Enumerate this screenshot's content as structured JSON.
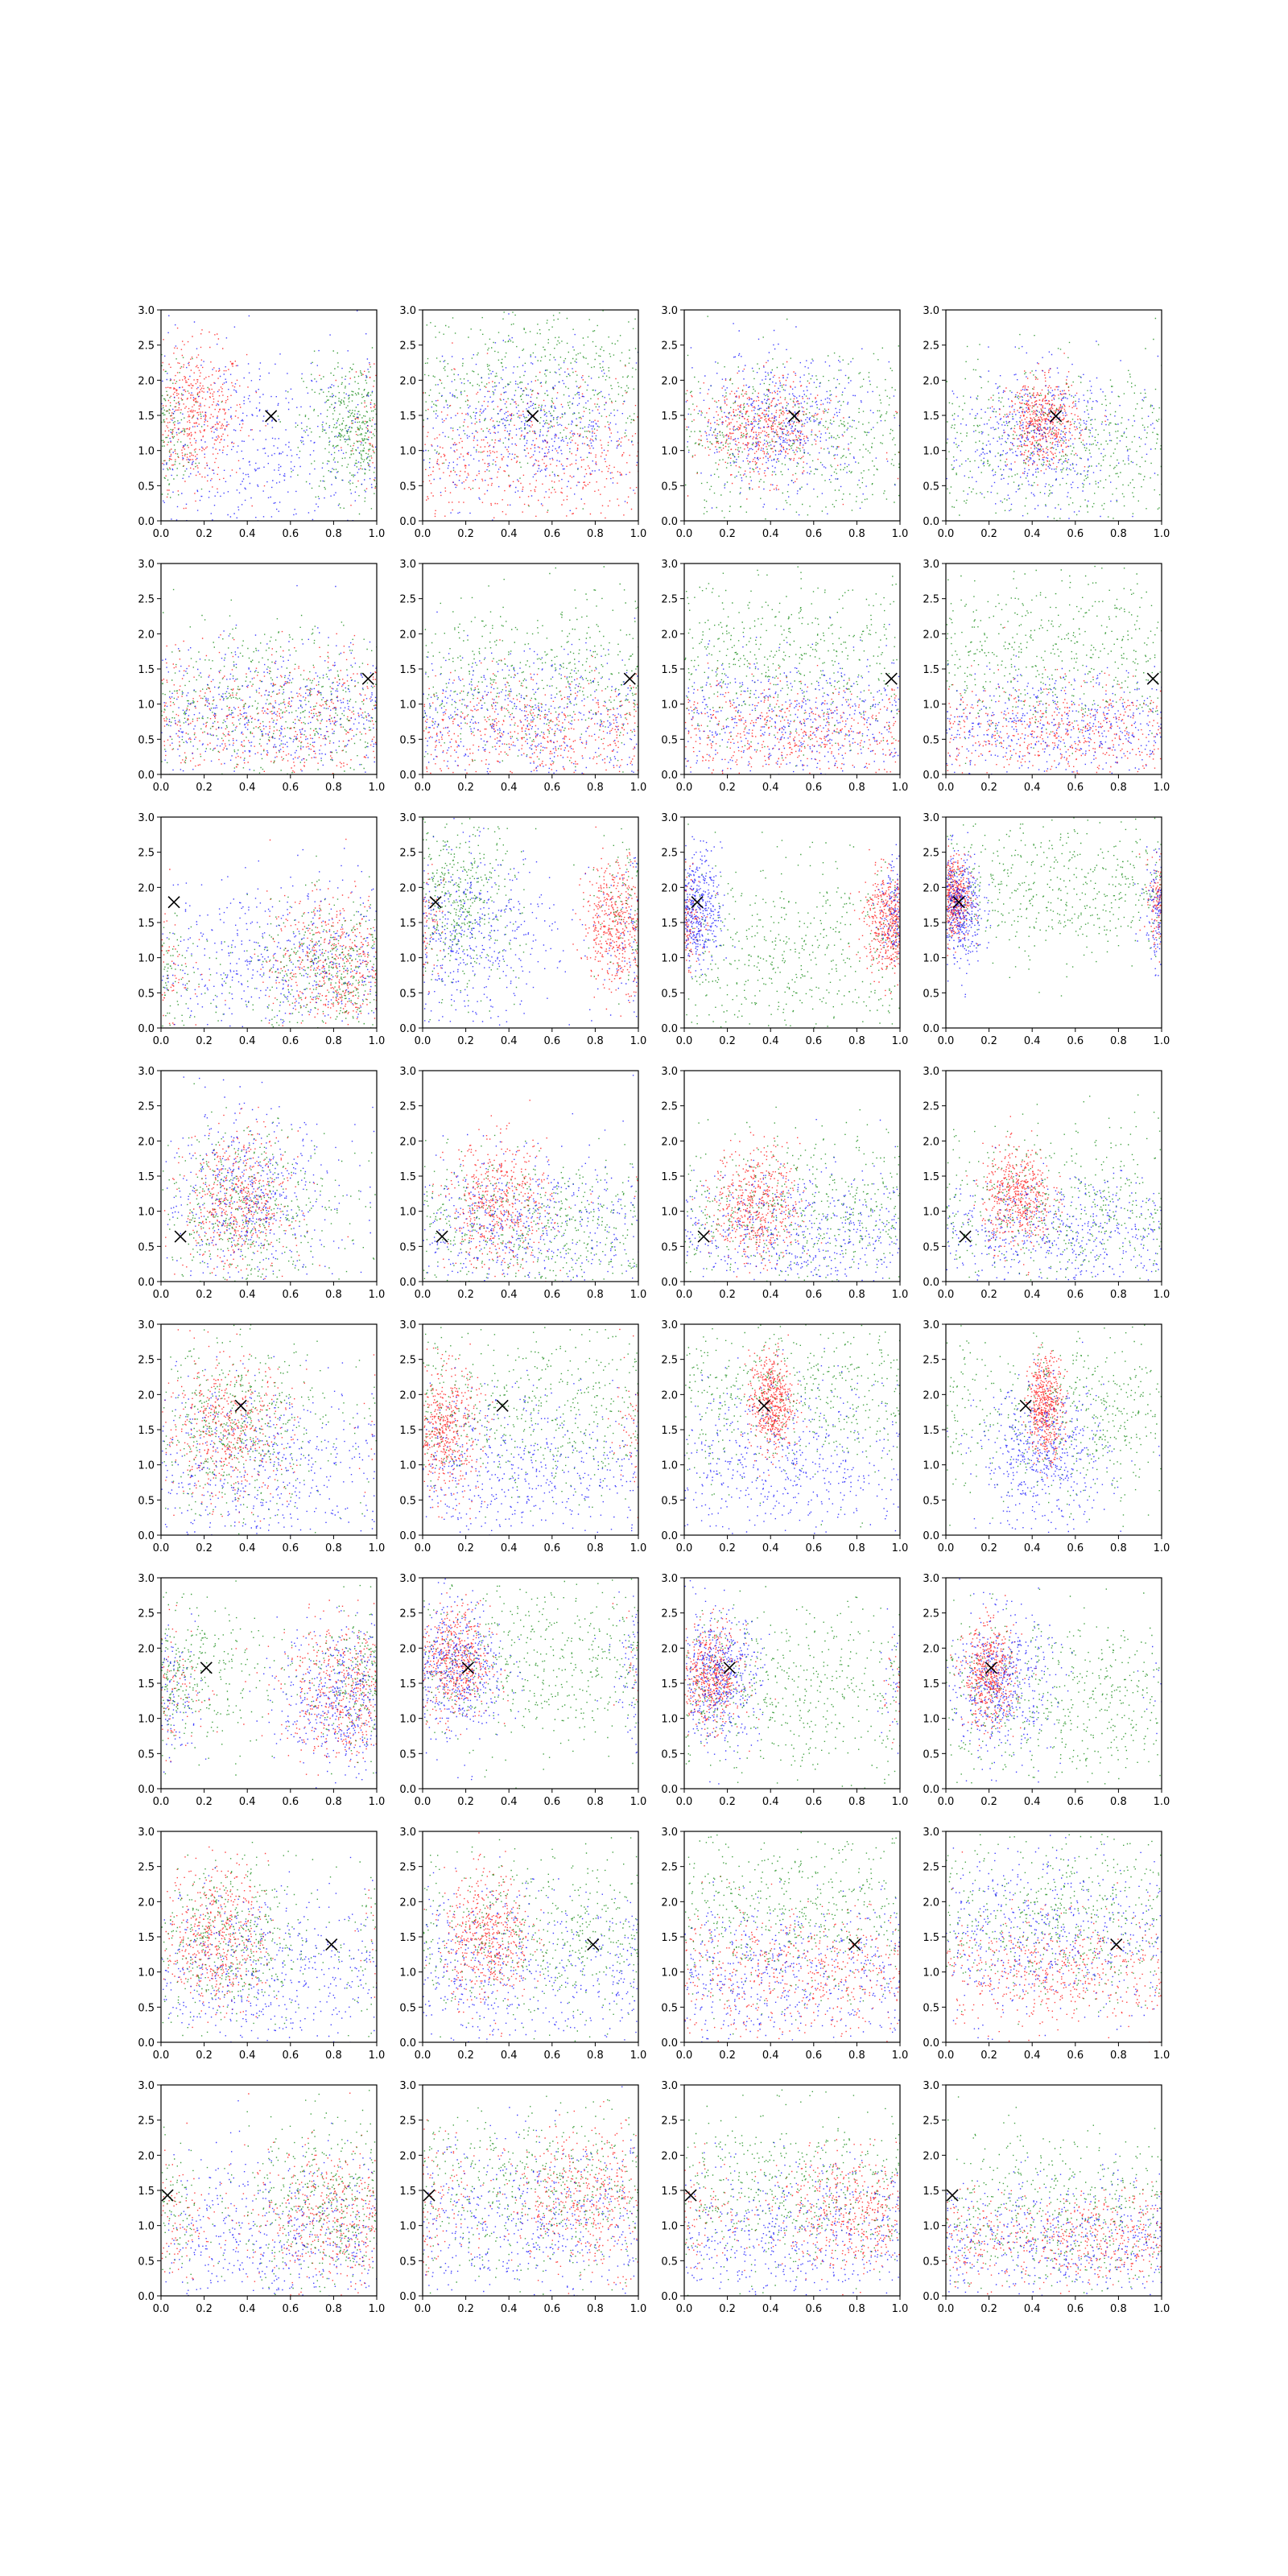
{
  "figure": {
    "rows": 8,
    "cols": 4
  },
  "colors": {
    "red": "#ff0000",
    "green": "#008000",
    "blue": "#0000ff",
    "marker": "#000000",
    "frame": "#000000"
  },
  "chart_data": {
    "type": "scatter",
    "title": "",
    "xlabel": "",
    "ylabel": "",
    "grid": false,
    "legend": "none",
    "xlim": [
      0.0,
      1.0
    ],
    "ylim": [
      0.0,
      3.0
    ],
    "x_ticks": [
      "0.0",
      "0.2",
      "0.4",
      "0.6",
      "0.8",
      "1.0"
    ],
    "y_ticks": [
      "0.0",
      "0.5",
      "1.0",
      "1.5",
      "2.0",
      "2.5",
      "3.0"
    ],
    "series_colors": [
      "red",
      "green",
      "blue"
    ],
    "panels": [
      {
        "row": 0,
        "col": 0,
        "marker": [
          0.51,
          1.49
        ]
      },
      {
        "row": 0,
        "col": 1,
        "marker": [
          0.51,
          1.49
        ]
      },
      {
        "row": 0,
        "col": 2,
        "marker": [
          0.51,
          1.49
        ]
      },
      {
        "row": 0,
        "col": 3,
        "marker": [
          0.51,
          1.49
        ]
      },
      {
        "row": 1,
        "col": 0,
        "marker": [
          0.96,
          1.36
        ]
      },
      {
        "row": 1,
        "col": 1,
        "marker": [
          0.96,
          1.36
        ]
      },
      {
        "row": 1,
        "col": 2,
        "marker": [
          0.96,
          1.36
        ]
      },
      {
        "row": 1,
        "col": 3,
        "marker": [
          0.96,
          1.36
        ]
      },
      {
        "row": 2,
        "col": 0,
        "marker": [
          0.06,
          1.79
        ]
      },
      {
        "row": 2,
        "col": 1,
        "marker": [
          0.06,
          1.79
        ]
      },
      {
        "row": 2,
        "col": 2,
        "marker": [
          0.06,
          1.79
        ]
      },
      {
        "row": 2,
        "col": 3,
        "marker": [
          0.06,
          1.79
        ]
      },
      {
        "row": 3,
        "col": 0,
        "marker": [
          0.09,
          0.64
        ]
      },
      {
        "row": 3,
        "col": 1,
        "marker": [
          0.09,
          0.64
        ]
      },
      {
        "row": 3,
        "col": 2,
        "marker": [
          0.09,
          0.64
        ]
      },
      {
        "row": 3,
        "col": 3,
        "marker": [
          0.09,
          0.64
        ]
      },
      {
        "row": 4,
        "col": 0,
        "marker": [
          0.37,
          1.84
        ]
      },
      {
        "row": 4,
        "col": 1,
        "marker": [
          0.37,
          1.84
        ]
      },
      {
        "row": 4,
        "col": 2,
        "marker": [
          0.37,
          1.84
        ]
      },
      {
        "row": 4,
        "col": 3,
        "marker": [
          0.37,
          1.84
        ]
      },
      {
        "row": 5,
        "col": 0,
        "marker": [
          0.21,
          1.72
        ]
      },
      {
        "row": 5,
        "col": 1,
        "marker": [
          0.21,
          1.72
        ]
      },
      {
        "row": 5,
        "col": 2,
        "marker": [
          0.21,
          1.72
        ]
      },
      {
        "row": 5,
        "col": 3,
        "marker": [
          0.21,
          1.72
        ]
      },
      {
        "row": 6,
        "col": 0,
        "marker": [
          0.79,
          1.39
        ]
      },
      {
        "row": 6,
        "col": 1,
        "marker": [
          0.79,
          1.39
        ]
      },
      {
        "row": 6,
        "col": 2,
        "marker": [
          0.79,
          1.39
        ]
      },
      {
        "row": 6,
        "col": 3,
        "marker": [
          0.79,
          1.39
        ]
      },
      {
        "row": 7,
        "col": 0,
        "marker": [
          0.03,
          1.43
        ]
      },
      {
        "row": 7,
        "col": 1,
        "marker": [
          0.03,
          1.43
        ]
      },
      {
        "row": 7,
        "col": 2,
        "marker": [
          0.03,
          1.43
        ]
      },
      {
        "row": 7,
        "col": 3,
        "marker": [
          0.03,
          1.43
        ]
      }
    ]
  }
}
